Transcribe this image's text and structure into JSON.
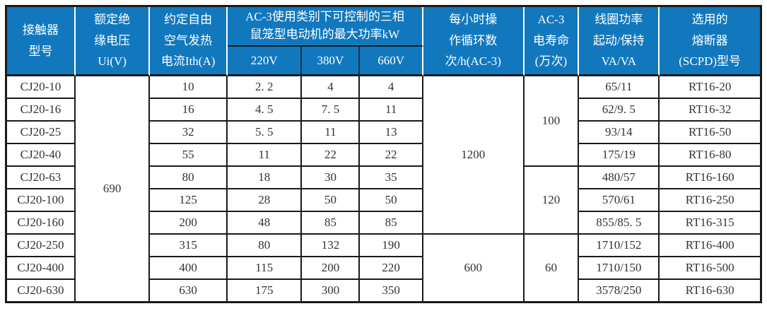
{
  "colors": {
    "header_bg": "#1278BE",
    "header_text": "#FFFFFF",
    "body_text": "#333333",
    "grid_border": "#1A1A1A"
  },
  "table": {
    "header": {
      "model": "接触器\n型号",
      "ui": "额定绝\n缘电压\nUi(V)",
      "ith": "约定自由\n空气发热\n电流Ith(A)",
      "ac3_group": "AC-3使用类别下可控制的三相\n鼠笼型电动机的最大功率kW",
      "v220": "220V",
      "v380": "380V",
      "v660": "660V",
      "cycles": "每小时操\n作循环数\n次/h(AC-3)",
      "life": "AC-3\n电寿命\n(万次)",
      "coil": "线圈功率\n起动/保持\nVA/VA",
      "fuse": "选用的\n熔断器\n(SCPD)型号"
    },
    "column_order": [
      "model",
      "ui",
      "ith",
      "p220",
      "p380",
      "p660",
      "cycles",
      "life",
      "coil",
      "fuse"
    ],
    "rows": [
      {
        "model": "CJ20-10",
        "ith": "10",
        "p220": "2. 2",
        "p380": "4",
        "p660": "4",
        "coil": "65/11",
        "fuse": "RT16-20"
      },
      {
        "model": "CJ20-16",
        "ith": "16",
        "p220": "4. 5",
        "p380": "7. 5",
        "p660": "11",
        "coil": "62/9. 5",
        "fuse": "RT16-32"
      },
      {
        "model": "CJ20-25",
        "ith": "32",
        "p220": "5. 5",
        "p380": "11",
        "p660": "13",
        "coil": "93/14",
        "fuse": "RT16-50"
      },
      {
        "model": "CJ20-40",
        "ith": "55",
        "p220": "11",
        "p380": "22",
        "p660": "22",
        "coil": "175/19",
        "fuse": "RT16-80"
      },
      {
        "model": "CJ20-63",
        "ith": "80",
        "p220": "18",
        "p380": "30",
        "p660": "35",
        "coil": "480/57",
        "fuse": "RT16-160"
      },
      {
        "model": "CJ20-100",
        "ith": "125",
        "p220": "28",
        "p380": "50",
        "p660": "50",
        "coil": "570/61",
        "fuse": "RT16-250"
      },
      {
        "model": "CJ20-160",
        "ith": "200",
        "p220": "48",
        "p380": "85",
        "p660": "85",
        "coil": "855/85. 5",
        "fuse": "RT16-315"
      },
      {
        "model": "CJ20-250",
        "ith": "315",
        "p220": "80",
        "p380": "132",
        "p660": "190",
        "coil": "1710/152",
        "fuse": "RT16-400"
      },
      {
        "model": "CJ20-400",
        "ith": "400",
        "p220": "115",
        "p380": "200",
        "p660": "220",
        "coil": "1710/150",
        "fuse": "RT16-500"
      },
      {
        "model": "CJ20-630",
        "ith": "630",
        "p220": "175",
        "p380": "300",
        "p660": "350",
        "coil": "3578/250",
        "fuse": "RT16-630"
      }
    ],
    "merged": {
      "ui": [
        {
          "row": 0,
          "span": 10,
          "value": "690"
        }
      ],
      "cycles": [
        {
          "row": 0,
          "span": 7,
          "value": "1200"
        },
        {
          "row": 7,
          "span": 3,
          "value": "600"
        }
      ],
      "life": [
        {
          "row": 0,
          "span": 4,
          "value": "100"
        },
        {
          "row": 4,
          "span": 3,
          "value": "120"
        },
        {
          "row": 7,
          "span": 3,
          "value": "60"
        }
      ]
    }
  }
}
